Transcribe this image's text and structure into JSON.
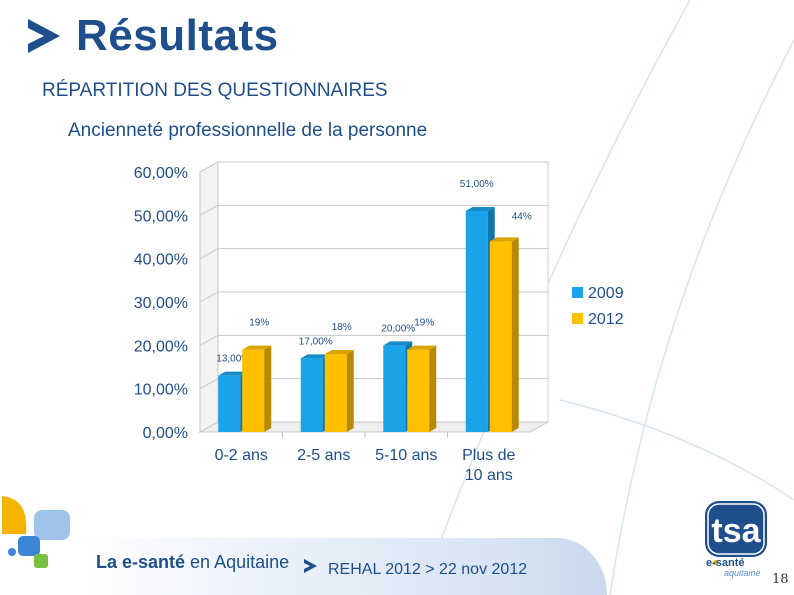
{
  "header": {
    "title": "Résultats",
    "subtitle": "RÉPARTITION DES QUESTIONNAIRES"
  },
  "chart_data": {
    "type": "bar",
    "title": "Ancienneté professionnelle de la personne",
    "categories": [
      "0-2 ans",
      "2-5 ans",
      "5-10 ans",
      "Plus de 10 ans"
    ],
    "category_lines": [
      [
        "0-2 ans"
      ],
      [
        "2-5 ans"
      ],
      [
        "5-10 ans"
      ],
      [
        "Plus de",
        "10 ans"
      ]
    ],
    "series": [
      {
        "name": "2009",
        "values": [
          13,
          17,
          20,
          51
        ],
        "labels": [
          "13,00%",
          "17,00%",
          "20,00%",
          "51,00%"
        ],
        "color": "#1aa3e8"
      },
      {
        "name": "2012",
        "values": [
          19,
          18,
          19,
          44
        ],
        "labels": [
          "19%",
          "18%",
          "19%",
          "44%"
        ],
        "color": "#ffc000"
      }
    ],
    "yticks": [
      "0,00%",
      "10,00%",
      "20,00%",
      "30,00%",
      "40,00%",
      "50,00%",
      "60,00%"
    ],
    "ylim": [
      0,
      60
    ],
    "grid": true,
    "legend": "right",
    "style": "3d"
  },
  "footer": {
    "brand_bold": "La e-santé",
    "brand_rest": " en Aquitaine",
    "event": "REHAL 2012 > 22 nov 2012",
    "page": "18"
  },
  "logo": {
    "text": "tsa",
    "sub1": "e-santé",
    "sub2": "aquitaine"
  },
  "colors": {
    "accent": "#1f4e8c",
    "series_2009": "#1aa3e8",
    "series_2012": "#ffc000"
  }
}
